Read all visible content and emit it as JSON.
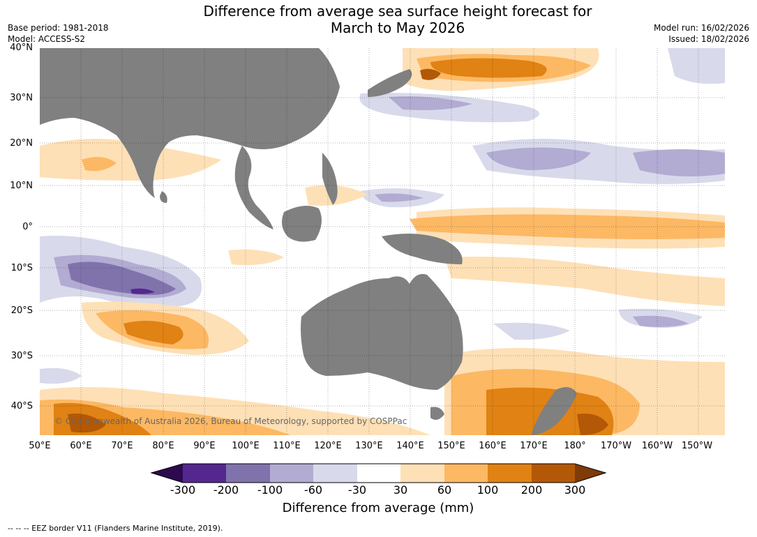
{
  "header": {
    "title_line1": "Difference from average sea surface height forecast for",
    "title_line2": "March to May 2026",
    "base_period": "Base period: 1981-2018",
    "model": "Model: ACCESS-S2",
    "model_run": "Model run: 16/02/2026",
    "issued": "Issued: 18/02/2026"
  },
  "map": {
    "lat_labels": [
      "40°N",
      "30°N",
      "20°N",
      "10°N",
      "0°",
      "10°S",
      "20°S",
      "30°S",
      "40°S"
    ],
    "lon_labels": [
      "50°E",
      "60°E",
      "70°E",
      "80°E",
      "90°E",
      "100°E",
      "110°E",
      "120°E",
      "130°E",
      "140°E",
      "150°E",
      "160°E",
      "170°E",
      "180°",
      "170°W",
      "160°W",
      "150°W"
    ],
    "copyright": "© Commonwealth of Australia 2026, Bureau of Meteorology, supported by COSPPac",
    "land_color": "#808080",
    "ocean_color": "#ffffff"
  },
  "colorbar": {
    "ticks": [
      "-300",
      "-200",
      "-100",
      "-60",
      "-30",
      "30",
      "60",
      "100",
      "200",
      "300"
    ],
    "colors": [
      "#2d0a4e",
      "#54278f",
      "#8073ac",
      "#b2abd2",
      "#d8daeb",
      "#ffffff",
      "#fee0b6",
      "#fdb863",
      "#e08214",
      "#b35806",
      "#7f3b08"
    ],
    "title": "Difference from average (mm)"
  },
  "footer": {
    "eez_legend": "--  --  -- EEZ border V11 (Flanders Marine Institute, 2019)."
  }
}
